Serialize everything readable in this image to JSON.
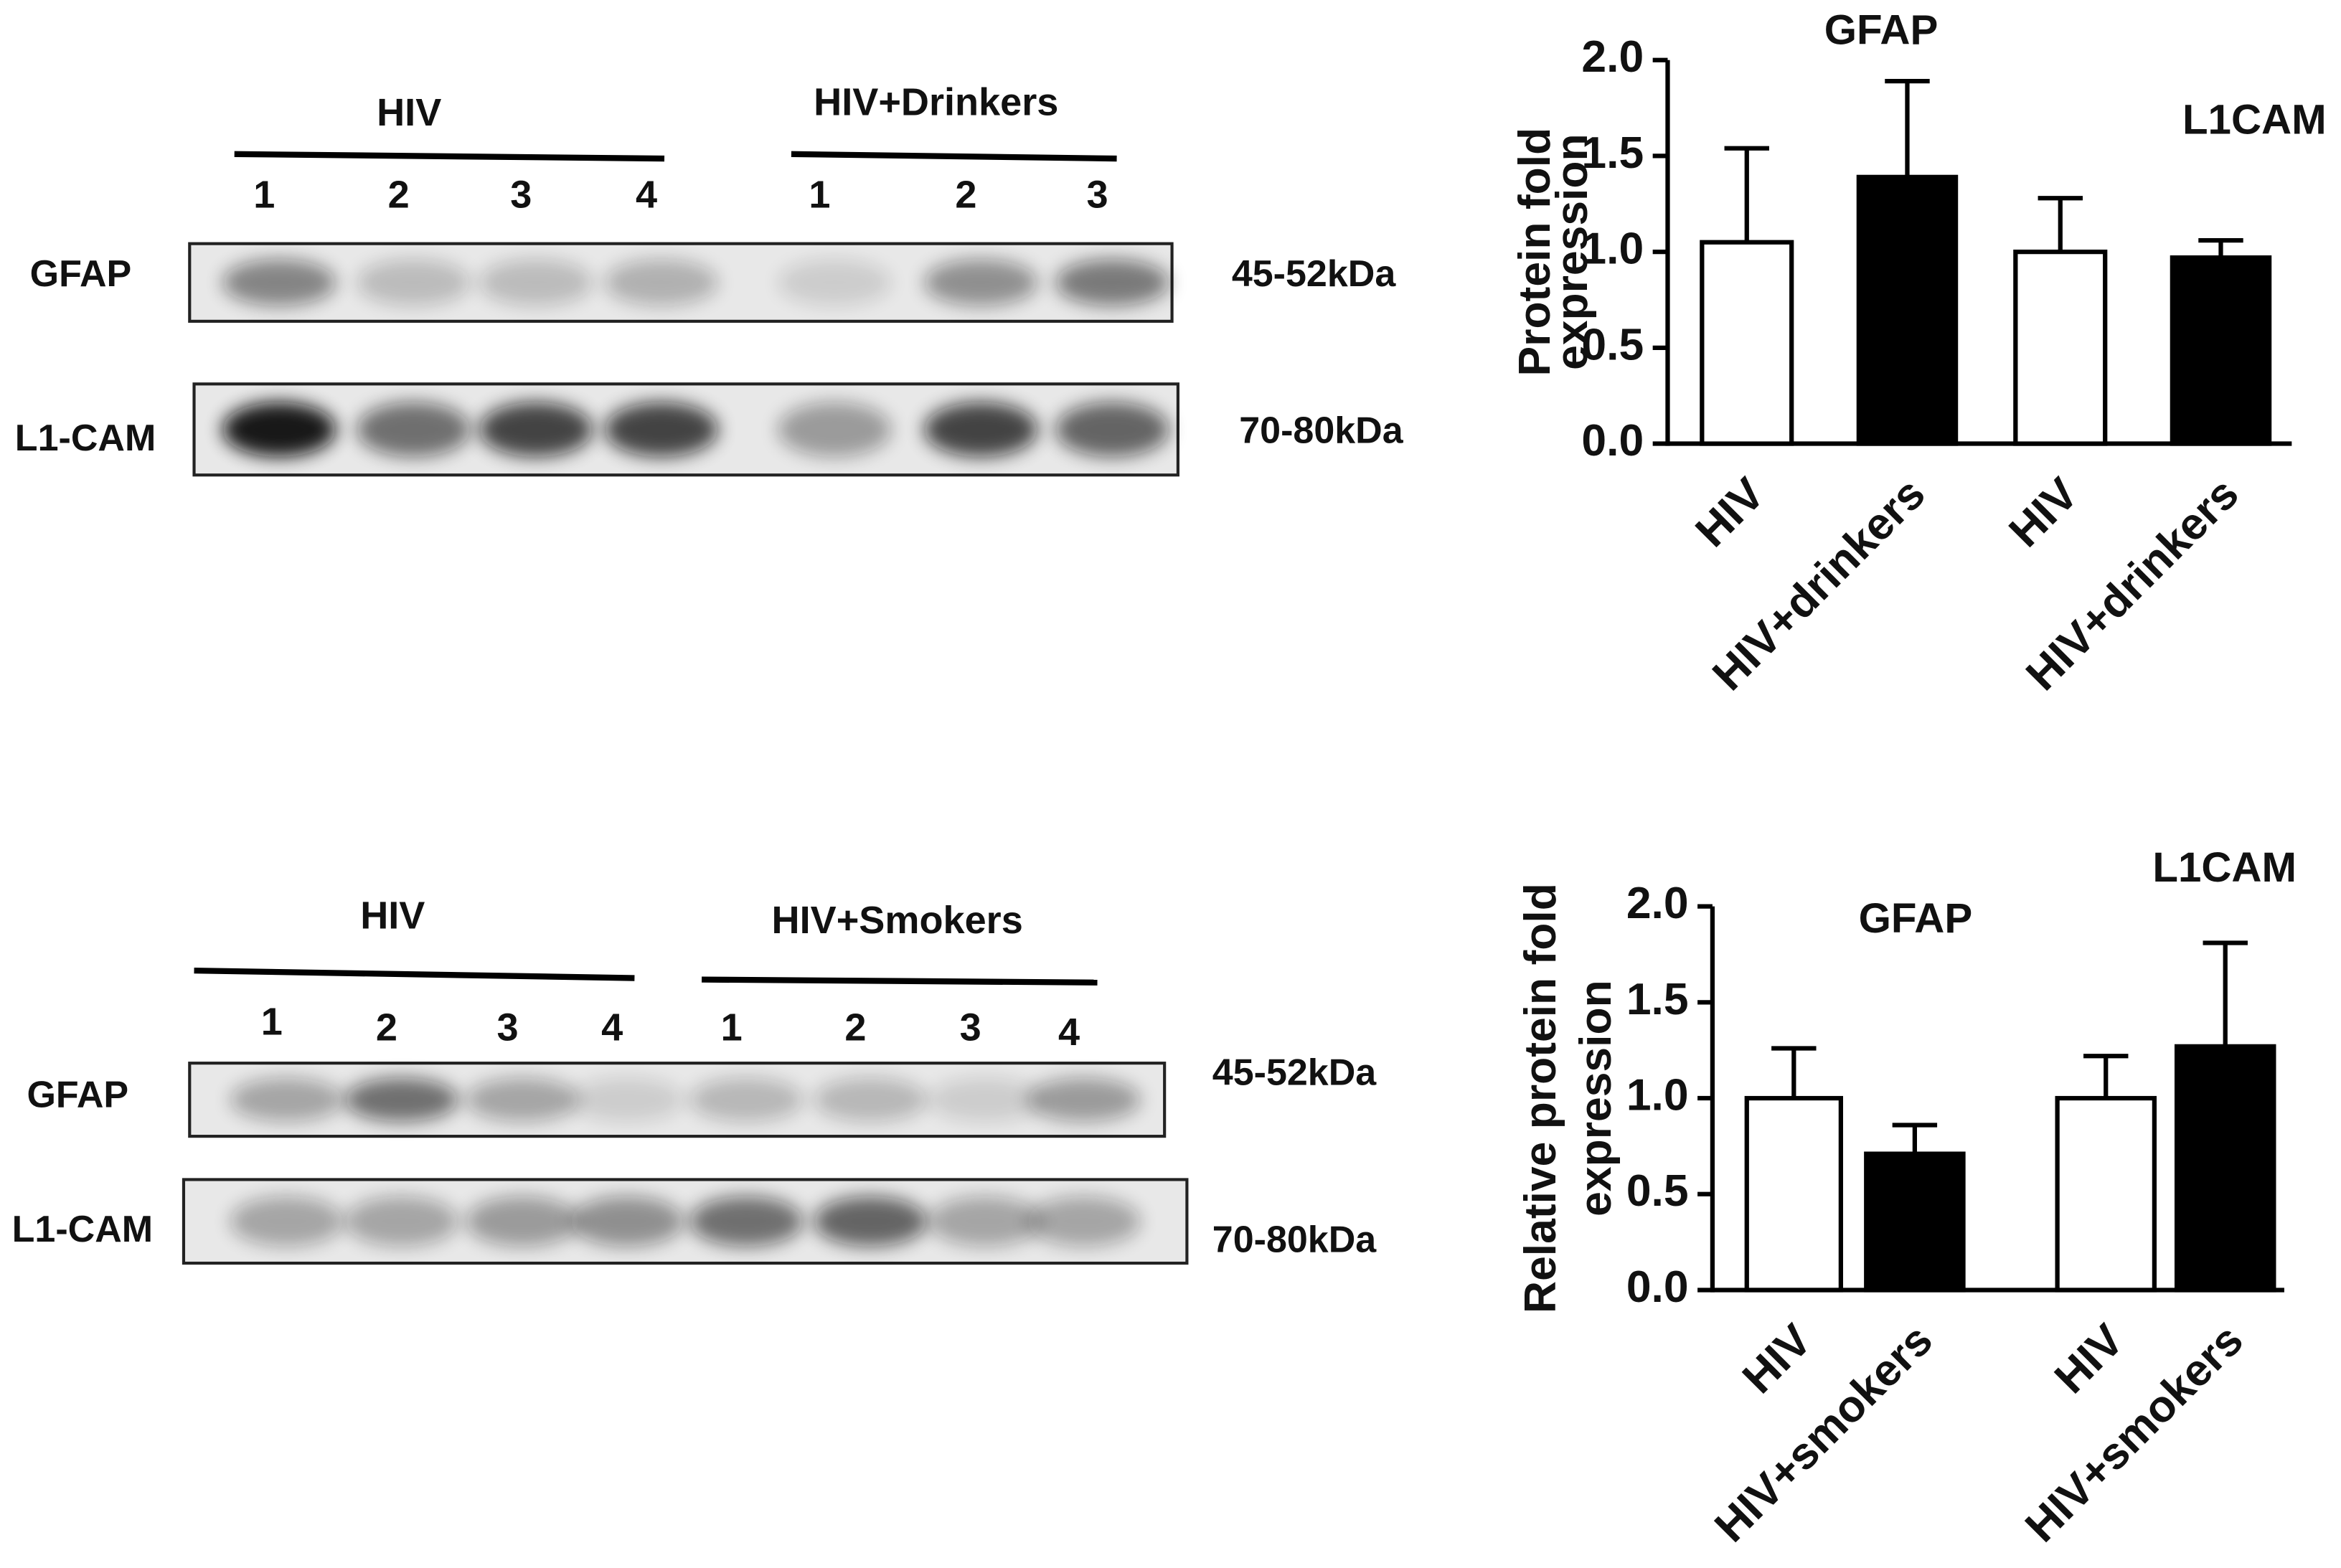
{
  "blots": [
    {
      "groups": [
        "HIV",
        "HIV+Drinkers"
      ],
      "lanes": [
        "1",
        "2",
        "3",
        "4",
        "1",
        "2",
        "3"
      ],
      "rows": [
        {
          "label": "GFAP",
          "size": "45-52kDa"
        },
        {
          "label": "L1-CAM",
          "size": "70-80kDa"
        }
      ]
    },
    {
      "groups": [
        "HIV",
        "HIV+Smokers"
      ],
      "lanes": [
        "1",
        "2",
        "3",
        "4",
        "1",
        "2",
        "3",
        "4"
      ],
      "rows": [
        {
          "label": "GFAP",
          "size": "45-52kDa"
        },
        {
          "label": "L1-CAM",
          "size": "70-80kDa"
        }
      ]
    }
  ],
  "chart_data": [
    {
      "type": "bar",
      "ylabel": [
        "Protein fold",
        "expression"
      ],
      "annotations": [
        "GFAP",
        "L1CAM"
      ],
      "categories": [
        "HIV",
        "HIV+drinkers",
        "HIV",
        "HIV+drinkers"
      ],
      "values": [
        1.05,
        1.39,
        1.0,
        0.97
      ],
      "errors": [
        0.49,
        0.5,
        0.28,
        0.09
      ],
      "colors": [
        "#ffffff",
        "#000000",
        "#ffffff",
        "#000000"
      ],
      "ylim": [
        0,
        2
      ],
      "yticks": [
        {
          "value": 0,
          "label": "0.0"
        },
        0.5,
        {
          "value": 1,
          "label": "1.0"
        },
        1.5,
        {
          "value": 2,
          "label": "2.0"
        }
      ]
    },
    {
      "type": "bar",
      "ylabel": [
        "Relative protein fold",
        "expression"
      ],
      "annotations": [
        "GFAP",
        "L1CAM"
      ],
      "categories": [
        "HIV",
        "HIV+smokers",
        "HIV",
        "HIV+smokers"
      ],
      "values": [
        1.0,
        0.71,
        1.0,
        1.27
      ],
      "errors": [
        0.26,
        0.15,
        0.22,
        0.54
      ],
      "colors": [
        "#ffffff",
        "#000000",
        "#ffffff",
        "#000000"
      ],
      "ylim": [
        0,
        2
      ],
      "yticks": [
        {
          "value": 0,
          "label": "0.0"
        },
        0.5,
        {
          "value": 1,
          "label": "1.0"
        },
        1.5,
        {
          "value": 2,
          "label": "2.0"
        }
      ]
    }
  ]
}
